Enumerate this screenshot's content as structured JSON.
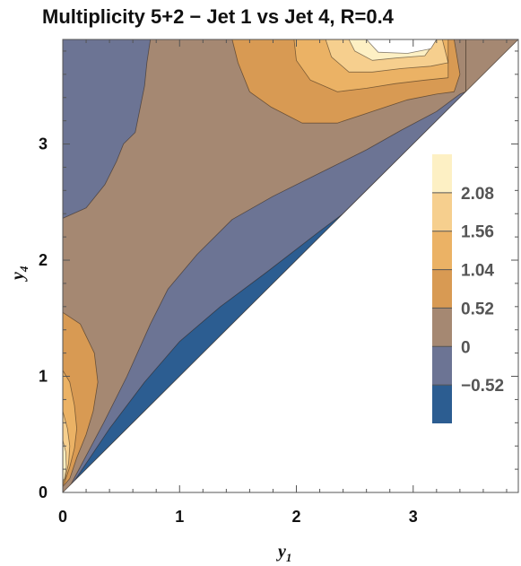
{
  "chart_data": {
    "type": "heatmap",
    "subtype": "contour",
    "title": "Multiplicity   5+2 − Jet 1 vs Jet 4, R=0.4",
    "xlabel": "y",
    "xlabel_sub": "1",
    "ylabel": "y",
    "ylabel_sub": "4",
    "xlim": [
      0,
      3.9
    ],
    "ylim": [
      0,
      3.9
    ],
    "x_ticks": [
      "0",
      "1",
      "2",
      "3"
    ],
    "y_ticks": [
      "0",
      "1",
      "2",
      "3"
    ],
    "legend_labels": [
      "2.08",
      "1.56",
      "1.04",
      "0.52",
      "0",
      "−0.52"
    ],
    "levels": [
      -0.52,
      0,
      0.52,
      1.04,
      1.56,
      2.08
    ],
    "level_colors": [
      "#2c5d91",
      "#6c7494",
      "#a58872",
      "#d89a53",
      "#ebb265",
      "#f6cf8e",
      "#fdf0c4"
    ],
    "legend_position": "right",
    "grid": false
  }
}
